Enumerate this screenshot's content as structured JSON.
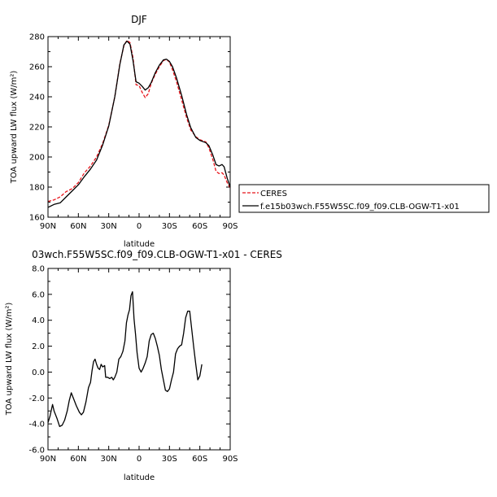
{
  "chart_data": [
    {
      "type": "line",
      "title": "DJF",
      "xlabel": "latitude",
      "ylabel": "TOA upward LW flux (W/m²)",
      "xlim": [
        90,
        -90
      ],
      "ylim": [
        160,
        280
      ],
      "x_ticks": [
        90,
        60,
        30,
        0,
        -30,
        -60,
        -90
      ],
      "x_tick_labels": [
        "90N",
        "60N",
        "30N",
        "0",
        "30S",
        "60S",
        "90S"
      ],
      "y_ticks": [
        160,
        180,
        200,
        220,
        240,
        260,
        280
      ],
      "y_tick_labels": [
        "160",
        "180",
        "200",
        "220",
        "240",
        "260",
        "280"
      ],
      "legend_position": "right",
      "series": [
        {
          "name": "CERES",
          "color": "#e8141b",
          "dash": "dashed",
          "points": [
            [
              90,
              170.5
            ],
            [
              84,
              171.5
            ],
            [
              78,
              173.5
            ],
            [
              72,
              177
            ],
            [
              66,
              179
            ],
            [
              60,
              183
            ],
            [
              54,
              189.5
            ],
            [
              48,
              194
            ],
            [
              42,
              200
            ],
            [
              36,
              209
            ],
            [
              30,
              221
            ],
            [
              24,
              240
            ],
            [
              19,
              262
            ],
            [
              15,
              274
            ],
            [
              12,
              277.5
            ],
            [
              9,
              276
            ],
            [
              6,
              266
            ],
            [
              3,
              248
            ],
            [
              0,
              247.5
            ],
            [
              -3,
              243
            ],
            [
              -6,
              239.5
            ],
            [
              -9,
              242
            ],
            [
              -12,
              249
            ],
            [
              -16,
              255
            ],
            [
              -20,
              260
            ],
            [
              -24,
              264
            ],
            [
              -27,
              265
            ],
            [
              -30,
              263
            ],
            [
              -33,
              258
            ],
            [
              -37,
              250
            ],
            [
              -42,
              238
            ],
            [
              -47,
              226
            ],
            [
              -51,
              218
            ],
            [
              -56,
              213.5
            ],
            [
              -60,
              211.5
            ],
            [
              -66,
              210
            ],
            [
              -69,
              206
            ],
            [
              -73,
              198
            ],
            [
              -76,
              190.5
            ],
            [
              -79,
              189
            ],
            [
              -82,
              189.5
            ],
            [
              -84,
              188
            ],
            [
              -87,
              183
            ],
            [
              -90,
              179.5
            ]
          ]
        },
        {
          "name": "f.e15b03wch.F55W5SC.f09_f09.CLB-OGW-T1-x01",
          "color": "#000000",
          "dash": "solid",
          "points": [
            [
              90,
              166.5
            ],
            [
              84,
              168.5
            ],
            [
              78,
              169.5
            ],
            [
              72,
              173.5
            ],
            [
              66,
              177.5
            ],
            [
              60,
              181.5
            ],
            [
              54,
              187
            ],
            [
              48,
              192
            ],
            [
              42,
              198
            ],
            [
              36,
              208
            ],
            [
              30,
              220.5
            ],
            [
              24,
              240
            ],
            [
              19,
              261.5
            ],
            [
              15,
              274.5
            ],
            [
              12,
              277
            ],
            [
              9,
              275
            ],
            [
              6,
              264
            ],
            [
              3,
              250
            ],
            [
              0,
              249
            ],
            [
              -3,
              247
            ],
            [
              -6,
              244.5
            ],
            [
              -9,
              246
            ],
            [
              -12,
              249.5
            ],
            [
              -16,
              256
            ],
            [
              -20,
              261
            ],
            [
              -24,
              264.5
            ],
            [
              -27,
              265
            ],
            [
              -30,
              263.5
            ],
            [
              -33,
              260
            ],
            [
              -37,
              252.5
            ],
            [
              -42,
              241
            ],
            [
              -47,
              228
            ],
            [
              -51,
              219.5
            ],
            [
              -56,
              213
            ],
            [
              -60,
              211
            ],
            [
              -66,
              209.5
            ],
            [
              -69,
              207.5
            ],
            [
              -73,
              201
            ],
            [
              -76,
              195
            ],
            [
              -79,
              194
            ],
            [
              -82,
              195
            ],
            [
              -84,
              193.5
            ],
            [
              -87,
              186
            ],
            [
              -90,
              180
            ]
          ]
        }
      ]
    },
    {
      "type": "line",
      "title": "03wch.F55W5SC.f09_f09.CLB-OGW-T1-x01 - CERES",
      "xlabel": "latitude",
      "ylabel": "TOA upward LW flux (W/m²)",
      "xlim": [
        90,
        -90
      ],
      "ylim": [
        -6,
        8
      ],
      "x_ticks": [
        90,
        60,
        30,
        0,
        -30,
        -60,
        -90
      ],
      "x_tick_labels": [
        "90N",
        "60N",
        "30N",
        "0",
        "30S",
        "60S",
        "90S"
      ],
      "y_ticks": [
        -6,
        -4,
        -2,
        0,
        2,
        4,
        6,
        8
      ],
      "y_tick_labels": [
        "-6.0",
        "-4.0",
        "-2.0",
        "0.0",
        "2.0",
        "4.0",
        "6.0",
        "8.0"
      ],
      "series": [
        {
          "color": "#000000",
          "dash": "solid",
          "points": [
            [
              90,
              -3.9
            ],
            [
              88,
              -3.4
            ],
            [
              85.5,
              -2.5
            ],
            [
              84,
              -3.0
            ],
            [
              81,
              -3.6
            ],
            [
              78.5,
              -4.2
            ],
            [
              76,
              -4.1
            ],
            [
              73.5,
              -3.7
            ],
            [
              71,
              -3.0
            ],
            [
              69,
              -2.2
            ],
            [
              67,
              -1.6
            ],
            [
              65,
              -2.0
            ],
            [
              62,
              -2.6
            ],
            [
              59,
              -3.1
            ],
            [
              57,
              -3.3
            ],
            [
              55,
              -3.1
            ],
            [
              52.5,
              -2.3
            ],
            [
              50,
              -1.2
            ],
            [
              48,
              -0.8
            ],
            [
              46.5,
              0.1
            ],
            [
              45,
              0.8
            ],
            [
              43.5,
              1.0
            ],
            [
              42,
              0.6
            ],
            [
              40.5,
              0.3
            ],
            [
              39,
              0.2
            ],
            [
              37.5,
              0.6
            ],
            [
              36,
              0.4
            ],
            [
              34,
              0.5
            ],
            [
              33,
              -0.4
            ],
            [
              31,
              -0.4
            ],
            [
              29,
              -0.5
            ],
            [
              27,
              -0.4
            ],
            [
              25.5,
              -0.6
            ],
            [
              24,
              -0.4
            ],
            [
              22,
              0.0
            ],
            [
              20,
              1.0
            ],
            [
              18,
              1.2
            ],
            [
              16,
              1.6
            ],
            [
              14,
              2.4
            ],
            [
              12.5,
              3.8
            ],
            [
              11,
              4.4
            ],
            [
              9.5,
              4.8
            ],
            [
              8,
              5.9
            ],
            [
              6.5,
              6.2
            ],
            [
              5,
              4.1
            ],
            [
              3.5,
              2.9
            ],
            [
              2,
              1.5
            ],
            [
              0,
              0.3
            ],
            [
              -2,
              0.0
            ],
            [
              -4,
              0.3
            ],
            [
              -6,
              0.7
            ],
            [
              -8,
              1.2
            ],
            [
              -10,
              2.4
            ],
            [
              -12,
              2.9
            ],
            [
              -14,
              3.0
            ],
            [
              -16,
              2.6
            ],
            [
              -18,
              2.0
            ],
            [
              -20,
              1.3
            ],
            [
              -22,
              0.2
            ],
            [
              -24,
              -0.6
            ],
            [
              -26,
              -1.4
            ],
            [
              -28,
              -1.5
            ],
            [
              -30,
              -1.3
            ],
            [
              -32,
              -0.6
            ],
            [
              -34,
              0.0
            ],
            [
              -36,
              1.4
            ],
            [
              -38,
              1.8
            ],
            [
              -40,
              2.0
            ],
            [
              -42,
              2.1
            ],
            [
              -44,
              3.0
            ],
            [
              -46,
              4.2
            ],
            [
              -48,
              4.7
            ],
            [
              -50,
              4.7
            ],
            [
              -52,
              3.3
            ],
            [
              -54,
              1.9
            ],
            [
              -56,
              0.6
            ],
            [
              -58,
              -0.6
            ],
            [
              -60,
              -0.3
            ],
            [
              -62,
              0.6
            ]
          ]
        }
      ]
    }
  ]
}
